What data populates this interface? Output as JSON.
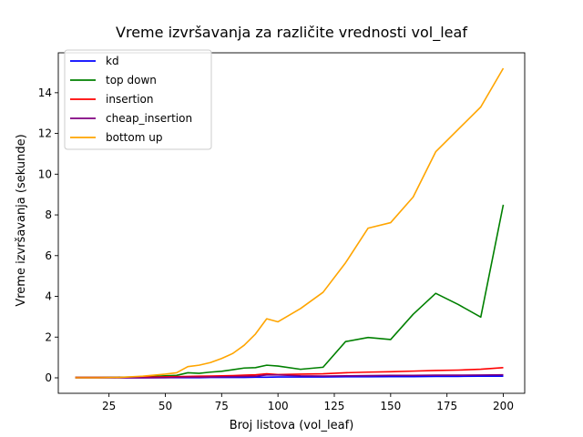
{
  "chart_data": {
    "type": "line",
    "title": "Vreme izvršavanja za različite vrednosti vol_leaf",
    "xlabel": "Broj listova (vol_leaf)",
    "ylabel": "Vreme izvršavanja (sekunde)",
    "xlim": [
      2.5,
      209.5
    ],
    "ylim": [
      -0.76,
      15.96
    ],
    "xticks": [
      25,
      50,
      75,
      100,
      125,
      150,
      175,
      200
    ],
    "yticks": [
      0,
      2,
      4,
      6,
      8,
      10,
      12,
      14
    ],
    "legend_position": "top-left",
    "grid": false,
    "x": [
      10,
      20,
      30,
      40,
      50,
      55,
      60,
      65,
      70,
      75,
      80,
      85,
      90,
      95,
      100,
      110,
      120,
      130,
      140,
      150,
      160,
      170,
      180,
      190,
      200
    ],
    "series": [
      {
        "name": "kd",
        "color": "#0000ff",
        "values": [
          0.0,
          0.0,
          0.0,
          0.0,
          0.01,
          0.01,
          0.01,
          0.01,
          0.02,
          0.02,
          0.02,
          0.02,
          0.03,
          0.03,
          0.04,
          0.04,
          0.04,
          0.05,
          0.05,
          0.06,
          0.06,
          0.07,
          0.07,
          0.08,
          0.08
        ]
      },
      {
        "name": "top down",
        "color": "#008000",
        "values": [
          0.02,
          0.02,
          0.03,
          0.05,
          0.1,
          0.12,
          0.25,
          0.22,
          0.28,
          0.32,
          0.4,
          0.48,
          0.5,
          0.62,
          0.58,
          0.42,
          0.52,
          1.78,
          1.98,
          1.88,
          3.12,
          4.15,
          3.6,
          2.98,
          8.5
        ]
      },
      {
        "name": "insertion",
        "color": "#ff0000",
        "values": [
          0.02,
          0.02,
          0.02,
          0.03,
          0.05,
          0.06,
          0.07,
          0.08,
          0.09,
          0.1,
          0.11,
          0.13,
          0.15,
          0.2,
          0.16,
          0.18,
          0.2,
          0.25,
          0.28,
          0.3,
          0.33,
          0.36,
          0.38,
          0.42,
          0.5
        ]
      },
      {
        "name": "cheap_insertion",
        "color": "#800080",
        "values": [
          0.0,
          0.0,
          0.0,
          0.0,
          0.01,
          0.02,
          0.03,
          0.03,
          0.04,
          0.05,
          0.06,
          0.07,
          0.08,
          0.14,
          0.14,
          0.1,
          0.09,
          0.1,
          0.11,
          0.12,
          0.12,
          0.13,
          0.13,
          0.14,
          0.15
        ]
      },
      {
        "name": "bottom up",
        "color": "#ffa500",
        "values": [
          0.0,
          0.0,
          0.02,
          0.08,
          0.18,
          0.25,
          0.55,
          0.62,
          0.75,
          0.95,
          1.2,
          1.6,
          2.15,
          2.9,
          2.75,
          3.4,
          4.2,
          5.65,
          7.35,
          7.62,
          8.88,
          11.1,
          12.2,
          13.3,
          15.2
        ]
      }
    ]
  }
}
